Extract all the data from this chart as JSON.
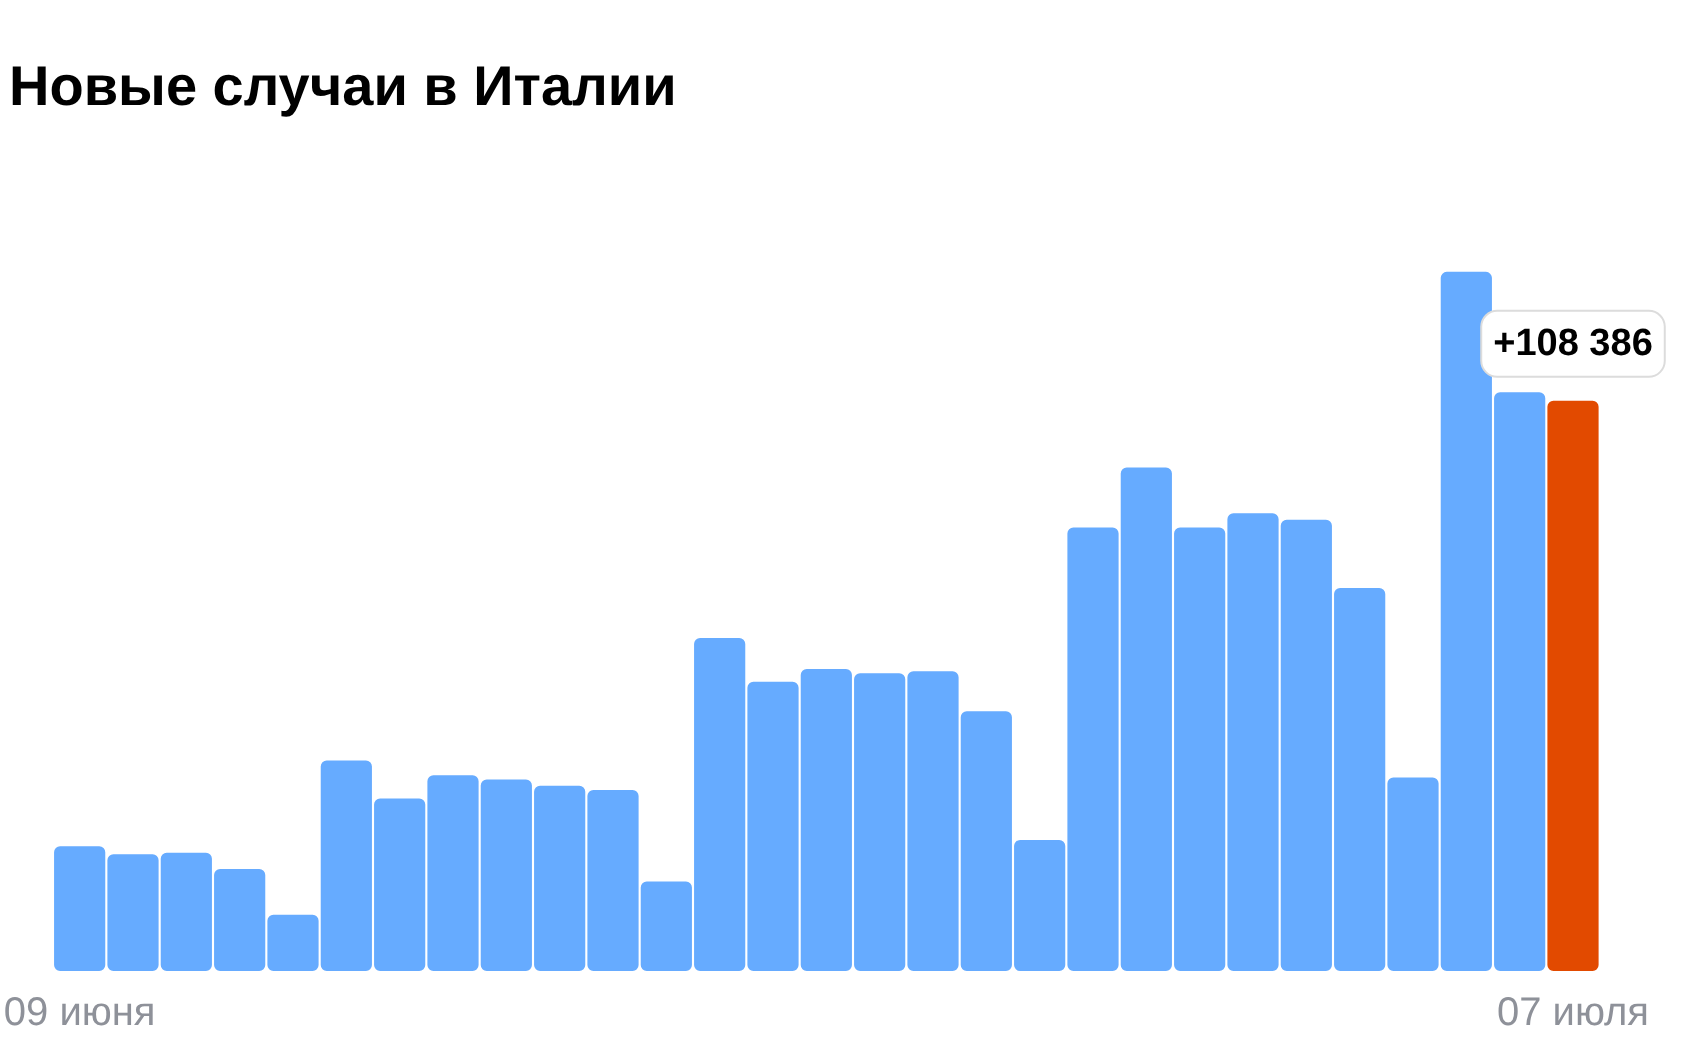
{
  "chart_data": {
    "type": "bar",
    "title": "Новые случаи в Италии",
    "categories": [
      "09 июня",
      null,
      null,
      null,
      null,
      null,
      null,
      null,
      null,
      null,
      null,
      null,
      null,
      null,
      null,
      null,
      null,
      null,
      null,
      null,
      null,
      null,
      null,
      null,
      null,
      null,
      null,
      null,
      "07 июля"
    ],
    "values": [
      23700,
      22200,
      22500,
      19400,
      10700,
      40000,
      32800,
      37200,
      36400,
      35200,
      34400,
      17000,
      63300,
      55000,
      57400,
      56600,
      57000,
      49400,
      24900,
      84300,
      95700,
      84300,
      87000,
      85800,
      72800,
      36800,
      132900,
      110000,
      108386
    ],
    "colors": [
      "#66abff",
      "#66abff",
      "#66abff",
      "#66abff",
      "#66abff",
      "#66abff",
      "#66abff",
      "#66abff",
      "#66abff",
      "#66abff",
      "#66abff",
      "#66abff",
      "#66abff",
      "#66abff",
      "#66abff",
      "#66abff",
      "#66abff",
      "#66abff",
      "#66abff",
      "#66abff",
      "#66abff",
      "#66abff",
      "#66abff",
      "#66abff",
      "#66abff",
      "#66abff",
      "#66abff",
      "#66abff",
      "#e24a00"
    ],
    "value_labels": [
      null,
      null,
      null,
      null,
      null,
      null,
      null,
      null,
      null,
      null,
      null,
      null,
      null,
      null,
      null,
      null,
      null,
      null,
      null,
      null,
      null,
      null,
      null,
      null,
      null,
      null,
      null,
      null,
      "+108 386"
    ]
  }
}
